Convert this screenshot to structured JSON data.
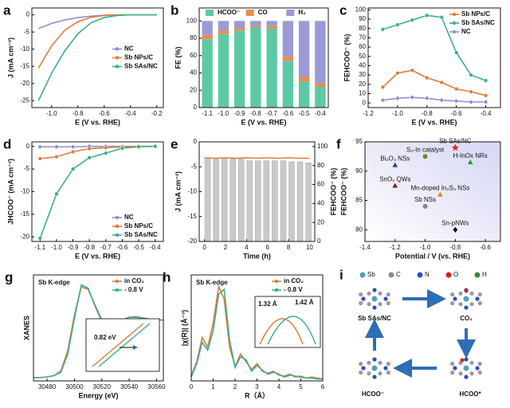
{
  "chart_data": [
    {
      "panel": "a",
      "type": "line",
      "markers": false,
      "x": [
        -1.1,
        -1.0,
        -0.9,
        -0.8,
        -0.7,
        -0.6,
        -0.5,
        -0.4,
        -0.3,
        -0.2
      ],
      "xlim": [
        -1.15,
        -0.15
      ],
      "ylim": [
        -27,
        2
      ],
      "xticks": [
        {
          "value": -1,
          "label": "-1.0"
        },
        -0.8,
        -0.6,
        -0.4,
        -0.2
      ],
      "yticks": [
        0,
        -5,
        -10,
        -15,
        -20,
        -25
      ],
      "xlabel": "E (V vs. RHE)",
      "ylabel": "J (mA cm⁻²)",
      "legend": "center-right",
      "series": [
        {
          "name": "NC",
          "color": "#8f8fd6",
          "values": [
            -4,
            -2.5,
            -1.5,
            -0.8,
            -0.4,
            -0.1,
            0,
            0,
            0,
            0
          ]
        },
        {
          "name": "Sb NPs/C",
          "color": "#e07b39",
          "values": [
            -15.5,
            -9,
            -4.5,
            -2,
            -0.7,
            -0.2,
            0,
            0,
            0,
            0
          ]
        },
        {
          "name": "Sb SAs/NC",
          "color": "#3aae8f",
          "values": [
            -25,
            -17,
            -10.5,
            -5.5,
            -2.3,
            -0.8,
            -0.2,
            0,
            0,
            0
          ]
        }
      ]
    },
    {
      "panel": "b",
      "type": "bar",
      "stacked": true,
      "categories": [
        "-1.1",
        "-1.0",
        "-0.9",
        "-0.8",
        "-0.7",
        "-0.6",
        "-0.5",
        "-0.4"
      ],
      "ylim": [
        0,
        115
      ],
      "yticks": [
        0,
        20,
        40,
        60,
        80,
        100
      ],
      "xlabel": "E (V vs. RHE)",
      "ylabel": "FE (%)",
      "legend": "top",
      "series": [
        {
          "name": "HCOO⁻",
          "color": "#5dc9a4",
          "values": [
            79,
            85,
            89,
            93,
            91,
            54,
            30,
            24
          ]
        },
        {
          "name": "CO",
          "color": "#f08a4b",
          "values": [
            5,
            4,
            3,
            2,
            3,
            5,
            5,
            4
          ]
        },
        {
          "name": "H₂",
          "color": "#9a9ad8",
          "values": [
            16,
            11,
            8,
            5,
            6,
            41,
            65,
            72
          ]
        }
      ]
    },
    {
      "panel": "c",
      "type": "line",
      "markers": true,
      "x": [
        -1.1,
        -1.0,
        -0.9,
        -0.8,
        -0.7,
        -0.6,
        -0.5,
        -0.4
      ],
      "xlim": [
        -1.2,
        -0.3
      ],
      "ylim": [
        -5,
        102
      ],
      "xticks": [
        -1.2,
        {
          "value": -1,
          "label": "-1.0"
        },
        -0.8,
        -0.6,
        -0.4
      ],
      "yticks": [
        0,
        10,
        20,
        30,
        40,
        50,
        60,
        70,
        80,
        90,
        100
      ],
      "xlabel": "E (V vs. RHE)",
      "ylabel": "FEHCOO⁻ (%)",
      "legend": "upper-right",
      "series": [
        {
          "name": "Sb NPs/C",
          "color": "#e07b39",
          "values": [
            17,
            32,
            35,
            27,
            22,
            15,
            12,
            8
          ]
        },
        {
          "name": "Sb SAs/NC",
          "color": "#3aae8f",
          "values": [
            79,
            84,
            89,
            94,
            92,
            54,
            30,
            24
          ]
        },
        {
          "name": "NC",
          "color": "#8f8fd6",
          "values": [
            3,
            5,
            6,
            5,
            3,
            2,
            1,
            1
          ]
        }
      ]
    },
    {
      "panel": "d",
      "type": "line",
      "markers": true,
      "x": [
        -1.1,
        -1.0,
        -0.9,
        -0.8,
        -0.7,
        -0.6,
        -0.5,
        -0.4
      ],
      "xlim": [
        -1.15,
        -0.35
      ],
      "ylim": [
        -21,
        1
      ],
      "xticks": [
        -1.1,
        {
          "value": -1,
          "label": "-1.0"
        },
        -0.9,
        -0.8,
        -0.7,
        -0.6,
        -0.5,
        -0.4
      ],
      "yticks": [
        0,
        -5,
        -10,
        -15,
        -20
      ],
      "xlabel": "E (V vs. RHE)",
      "ylabel": "JHCOO⁻ (mA cm⁻²)",
      "legend": "lower-right",
      "series": [
        {
          "name": "NC",
          "color": "#8f8fd6",
          "values": [
            -0.1,
            -0.1,
            -0.1,
            0,
            0,
            0,
            0,
            0
          ]
        },
        {
          "name": "Sb NPs/C",
          "color": "#e07b39",
          "values": [
            -2.7,
            -2.3,
            -1.2,
            -0.5,
            -0.3,
            -0.1,
            0,
            0
          ]
        },
        {
          "name": "Sb SAs/NC",
          "color": "#3aae8f",
          "values": [
            -20.3,
            -10.5,
            -5,
            -2.5,
            -1.5,
            -0.4,
            -0.1,
            0
          ]
        }
      ]
    },
    {
      "panel": "e",
      "type": "combo",
      "xlim": [
        -0.5,
        10.5
      ],
      "ylim": [
        -20,
        0
      ],
      "y2lim": [
        0,
        105
      ],
      "xticks": [
        0,
        2,
        4,
        6,
        8,
        10
      ],
      "yticks": [
        0,
        -5,
        -10,
        -15,
        -20
      ],
      "y2ticks": [
        0,
        20,
        40,
        60,
        80,
        100
      ],
      "xlabel": "Time (h)",
      "ylabel": "J (mA cm⁻²)",
      "y2label": "FEHCOO⁻ (%)",
      "series": [
        {
          "type": "bar",
          "axis": "y2",
          "color": "#c9c9c9",
          "x": [
            0.3,
            1.1,
            1.9,
            2.7,
            3.5,
            4.3,
            5.1,
            5.9,
            6.7,
            7.5,
            8.3,
            9.1,
            9.9
          ],
          "values": [
            88,
            88,
            88,
            87,
            87,
            85,
            85,
            85,
            85,
            85,
            84,
            84,
            83
          ]
        },
        {
          "type": "line",
          "axis": "y",
          "color": "#e07b39",
          "x": [
            0,
            1,
            2,
            3,
            4,
            5,
            6,
            7,
            8,
            9,
            10
          ],
          "values": [
            -3.2,
            -3.3,
            -3.2,
            -3.3,
            -3.2,
            -3.3,
            -3.2,
            -3.3,
            -3.2,
            -3.3,
            -3.3
          ]
        }
      ]
    },
    {
      "panel": "f",
      "type": "scatter",
      "xlim": [
        -1.4,
        -0.5
      ],
      "ylim": [
        78,
        95
      ],
      "xticks": [
        -1.4,
        -1.2,
        {
          "value": -1,
          "label": "-1.0"
        },
        -0.8,
        -0.6
      ],
      "yticks": [
        80,
        85,
        90,
        95
      ],
      "xlabel": "Potential / V (vs. RHE)",
      "ylabel": "FEHCOO⁻ (%)",
      "points": [
        {
          "label": "Sb SAs/NC",
          "x": -0.8,
          "y": 94,
          "color": "#e02020",
          "marker": "star"
        },
        {
          "label": "Bi₂O₃ NSs",
          "x": -1.2,
          "y": 91,
          "color": "#2a3a9a",
          "marker": "triangle"
        },
        {
          "label": "S₂-In catalyst",
          "x": -1.0,
          "y": 92.5,
          "color": "#6a8a2a",
          "marker": "circle"
        },
        {
          "label": "H-InOx NRs",
          "x": -0.7,
          "y": 91.5,
          "color": "#2a9a3a",
          "marker": "triangle"
        },
        {
          "label": "SnO₂ QWs",
          "x": -1.2,
          "y": 87.5,
          "color": "#8a1a1a",
          "marker": "triangle"
        },
        {
          "label": "Mn-doped In₂S₃ NSs",
          "x": -0.9,
          "y": 86,
          "color": "#d09010",
          "marker": "triangle"
        },
        {
          "label": "Sb NSs",
          "x": -1.0,
          "y": 84,
          "color": "#888888",
          "marker": "circle"
        },
        {
          "label": "Sn-pNWs",
          "x": -0.8,
          "y": 80,
          "color": "#111111",
          "marker": "diamond"
        }
      ]
    },
    {
      "panel": "g",
      "type": "line",
      "markers": false,
      "x": [
        30470,
        30475,
        30480,
        30485,
        30490,
        30495,
        30500,
        30505,
        30510,
        30515,
        30520,
        30525,
        30530,
        30535,
        30540,
        30545,
        30550,
        30555,
        30560,
        30565
      ],
      "xlim": [
        30470,
        30565
      ],
      "ylim": [
        0,
        1.6
      ],
      "xticks": [
        30480,
        30500,
        30520,
        30540,
        30560
      ],
      "xlabel": "Energy (eV)",
      "ylabel": "XANES",
      "legend": "upper-right",
      "annotations": [
        "Sb K-edge",
        "0.82 eV"
      ],
      "series": [
        {
          "name": "in CO₂",
          "color": "#e07b39",
          "values": [
            0.05,
            0.05,
            0.06,
            0.08,
            0.15,
            0.45,
            1.0,
            1.42,
            1.38,
            1.15,
            0.92,
            0.84,
            0.86,
            0.92,
            0.96,
            0.97,
            0.95,
            0.93,
            0.92,
            0.92
          ]
        },
        {
          "name": "- 0.8 V",
          "color": "#3aae8f",
          "values": [
            0.05,
            0.05,
            0.06,
            0.08,
            0.13,
            0.4,
            0.95,
            1.45,
            1.4,
            1.13,
            0.9,
            0.83,
            0.86,
            0.92,
            0.96,
            0.96,
            0.95,
            0.93,
            0.92,
            0.92
          ]
        }
      ]
    },
    {
      "panel": "h",
      "type": "line",
      "markers": false,
      "x": [
        0,
        0.25,
        0.5,
        0.75,
        1.0,
        1.25,
        1.5,
        1.75,
        2.0,
        2.25,
        2.5,
        2.75,
        3.0,
        3.25,
        3.5,
        3.75,
        4.0,
        4.25,
        4.5,
        4.75,
        5.0,
        5.25,
        5.5,
        5.75,
        6.0
      ],
      "xlim": [
        0,
        6
      ],
      "ylim": [
        0,
        1.1
      ],
      "xticks": [
        0,
        1,
        2,
        3,
        4,
        5,
        6
      ],
      "xlabel": "R（Å）",
      "ylabel": "|χ(R)| (Å⁻³)",
      "legend": "upper-right",
      "annotations": [
        "Sb K-edge",
        "1.32 Å",
        "1.42 Å"
      ],
      "series": [
        {
          "name": "in CO₂",
          "color": "#e07b39",
          "values": [
            0.05,
            0.2,
            0.45,
            0.35,
            0.6,
            0.98,
            0.85,
            0.35,
            0.15,
            0.28,
            0.2,
            0.12,
            0.18,
            0.1,
            0.08,
            0.1,
            0.06,
            0.05,
            0.07,
            0.04,
            0.05,
            0.03,
            0.04,
            0.03,
            0.02
          ]
        },
        {
          "name": "- 0.8 V",
          "color": "#3aae8f",
          "values": [
            0.04,
            0.18,
            0.4,
            0.32,
            0.52,
            0.9,
            0.95,
            0.42,
            0.14,
            0.25,
            0.22,
            0.1,
            0.16,
            0.11,
            0.07,
            0.09,
            0.07,
            0.04,
            0.06,
            0.05,
            0.04,
            0.03,
            0.03,
            0.02,
            0.02
          ]
        }
      ]
    }
  ],
  "diagram": {
    "panel": "i",
    "legend": [
      "Sb",
      "C",
      "N",
      "O",
      "H"
    ],
    "catalyst": "Sb SAs/NC",
    "states": [
      "CO₂",
      "HCOO*",
      "HCOO⁻"
    ]
  }
}
